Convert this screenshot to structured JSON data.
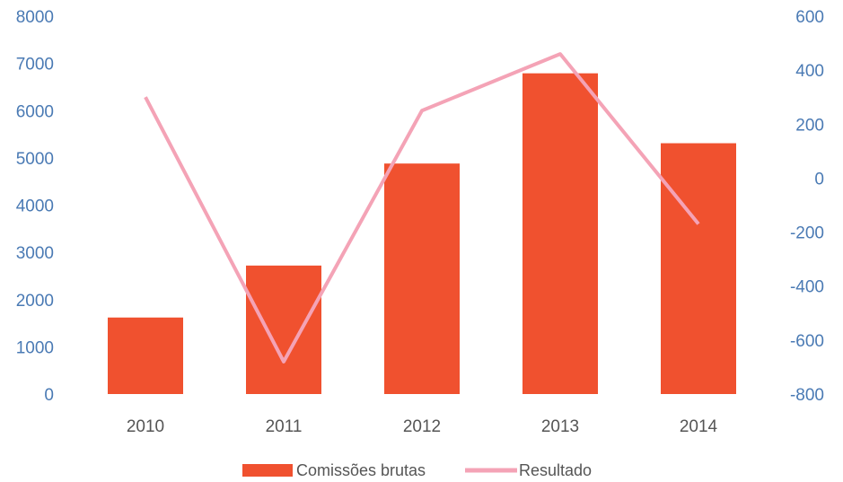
{
  "chart_data": {
    "type": "bar+line",
    "categories": [
      "2010",
      "2011",
      "2012",
      "2013",
      "2014"
    ],
    "series": [
      {
        "name": "Comissões brutas",
        "type": "bar",
        "axis": "left",
        "values": [
          1620,
          2720,
          4880,
          6790,
          5310
        ],
        "color": "#f0512f"
      },
      {
        "name": "Resultado",
        "type": "line",
        "axis": "right",
        "values": [
          300,
          -680,
          250,
          460,
          -170
        ],
        "color": "#f4a3b6"
      }
    ],
    "y_left": {
      "min": 0,
      "max": 8000,
      "ticks": [
        "0",
        "1000",
        "2000",
        "3000",
        "4000",
        "5000",
        "6000",
        "7000",
        "8000"
      ]
    },
    "y_right": {
      "min": -800,
      "max": 600,
      "ticks": [
        "-800",
        "-600",
        "-400",
        "-200",
        "0",
        "200",
        "400",
        "600"
      ]
    },
    "grid": false,
    "legend": "bottom"
  }
}
